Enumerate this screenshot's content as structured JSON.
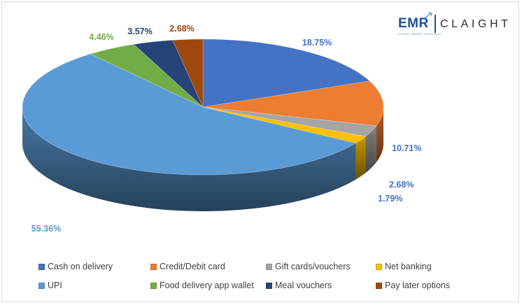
{
  "chart_data": {
    "type": "pie",
    "labels": [
      "Cash on delivery",
      "Credit/Debit card",
      "Gift cards/vouchers",
      "Net banking",
      "UPI",
      "Food delivery app wallet",
      "Meal vouchers",
      "Pay later options"
    ],
    "values": [
      18.75,
      10.71,
      2.68,
      1.79,
      55.36,
      4.46,
      3.57,
      2.68
    ],
    "value_labels": [
      "18.75%",
      "10.71%",
      "2.68%",
      "1.79%",
      "55.36%",
      "4.46%",
      "3.57%",
      "2.68%"
    ],
    "colors": [
      "#4472c4",
      "#ed7d31",
      "#a5a5a5",
      "#ffc000",
      "#5b9bd5",
      "#70ad47",
      "#264478",
      "#9e480e"
    ],
    "label_colors": [
      "#4472c4",
      "#4472c4",
      "#4472c4",
      "#4472c4",
      "#5b9bd5",
      "#70ad47",
      "#264478",
      "#9e480e"
    ],
    "style": "3d",
    "legend_position": "bottom"
  },
  "logo": {
    "brand": "EMR",
    "tagline": "EXPERT MARKET RESEARCH",
    "partner": "CLAIGHT"
  }
}
